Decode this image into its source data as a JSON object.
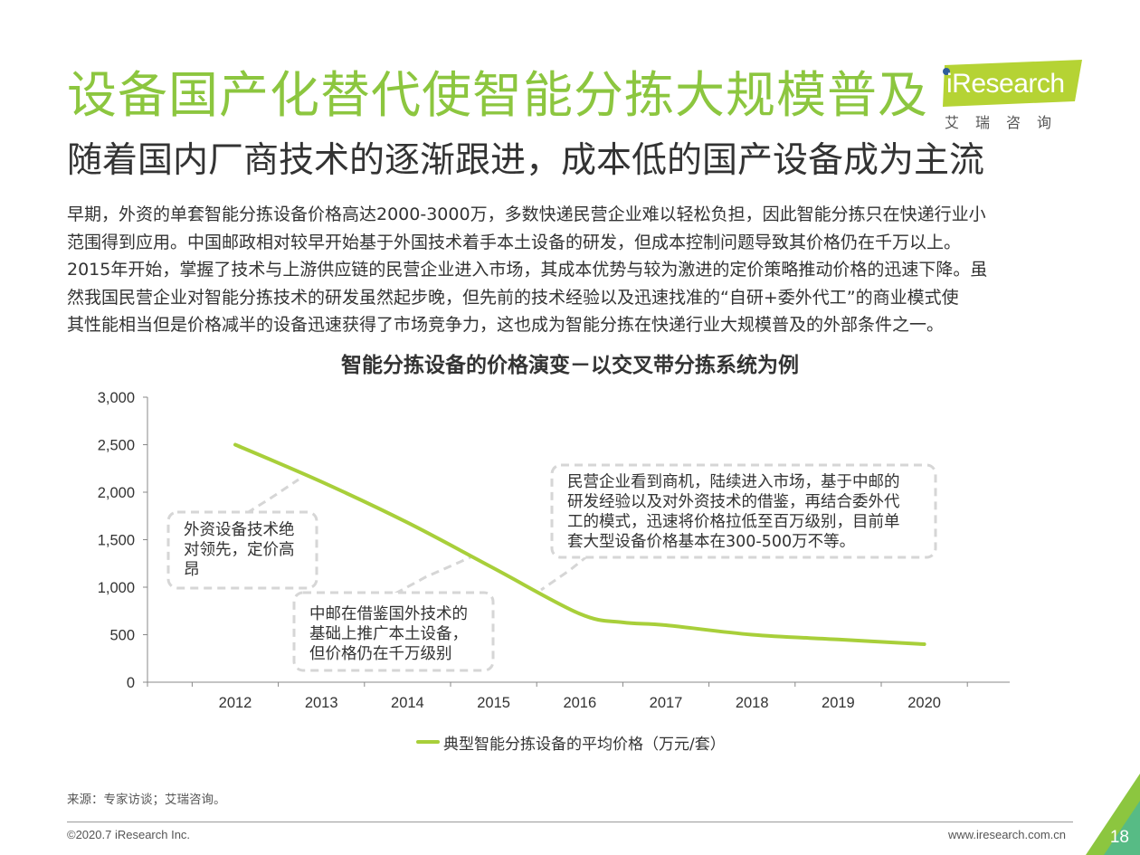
{
  "header": {
    "title": "设备国产化替代使智能分拣大规模普及",
    "subtitle": "随着国内厂商技术的逐渐跟进，成本低的国产设备成为主流"
  },
  "logo": {
    "wordmark": "iResearch",
    "sub": "艾瑞咨询",
    "color": "#b5d334"
  },
  "paragraph_lines": [
    "早期，外资的单套智能分拣设备价格高达2000-3000万，多数快递民营企业难以轻松负担，因此智能分拣只在快递行业小",
    "范围得到应用。中国邮政相对较早开始基于外国技术着手本土设备的研发，但成本控制问题导致其价格仍在千万以上。",
    "2015年开始，掌握了技术与上游供应链的民营企业进入市场，其成本优势与较为激进的定价策略推动价格的迅速下降。虽",
    "然我国民营企业对智能分拣技术的研发虽然起步晚，但先前的技术经验以及迅速找准的“自研+委外代工”的商业模式使",
    "其性能相当但是价格减半的设备迅速获得了市场竞争力，这也成为智能分拣在快递行业大规模普及的外部条件之一。"
  ],
  "chart_data": {
    "type": "line",
    "title": "智能分拣设备的价格演变－以交叉带分拣系统为例",
    "x": [
      2012,
      2013,
      2014,
      2015,
      2016,
      2016.5,
      2017,
      2018,
      2019,
      2020
    ],
    "x_ticks": [
      "2012",
      "2013",
      "2014",
      "2015",
      "2016",
      "2017",
      "2018",
      "2019",
      "2020"
    ],
    "y_ticks": [
      "3,000",
      "2,500",
      "2,000",
      "1,500",
      "1,000",
      "500",
      "0"
    ],
    "ylim": [
      0,
      3000
    ],
    "series": [
      {
        "name": "典型智能分拣设备的平均价格（万元/套）",
        "color": "#a8cf3a",
        "values": [
          2500,
          2110,
          1680,
          1200,
          720,
          630,
          600,
          500,
          450,
          400
        ]
      }
    ],
    "annotations": [
      {
        "lines": [
          "外资设备技术绝",
          "对领先，定价高",
          "昂"
        ]
      },
      {
        "lines": [
          "中邮在借鉴国外技术的",
          "基础上推广本土设备，",
          "但价格仍在千万级别"
        ]
      },
      {
        "lines": [
          "民营企业看到商机，陆续进入市场，基于中邮的",
          "研发经验以及对外资技术的借鉴，再结合委外代",
          "工的模式，迅速将价格拉低至百万级别，目前单",
          "套大型设备价格基本在300-500万不等。"
        ]
      }
    ]
  },
  "footer": {
    "source": "来源：专家访谈；艾瑞咨询。",
    "copyright": "©2020.7 iResearch Inc.",
    "website": "www.iresearch.com.cn",
    "page_number": "18",
    "accent": "#8cc63f"
  }
}
